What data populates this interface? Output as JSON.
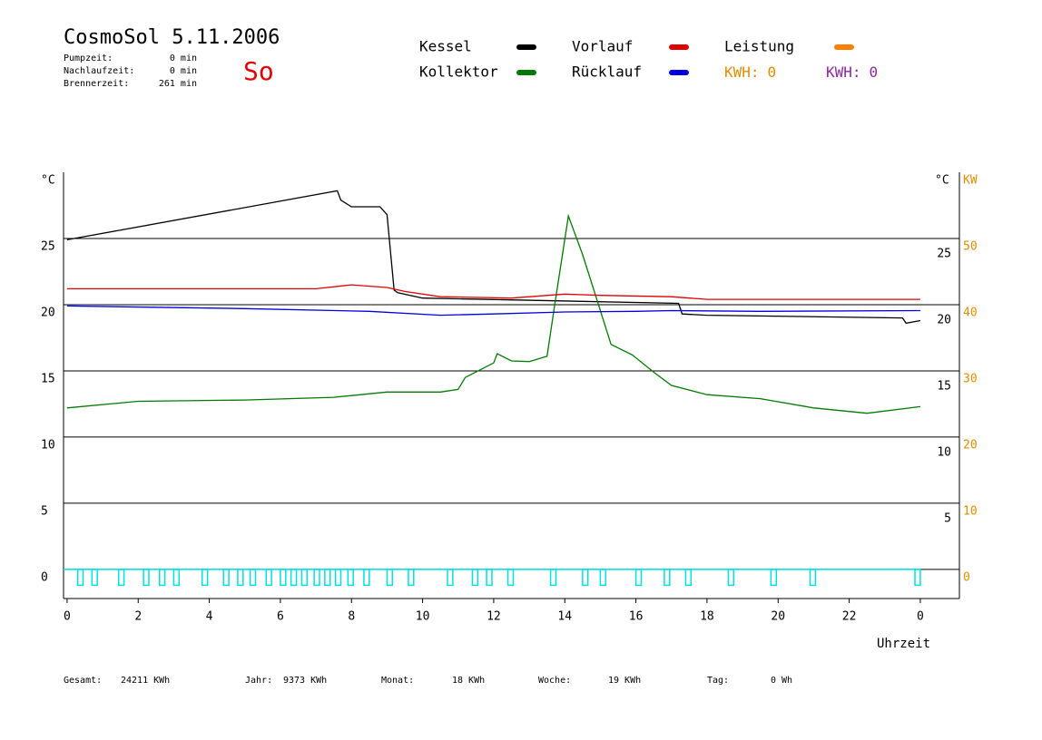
{
  "header": {
    "title": "CosmoSol 5.11.2006",
    "day": "So",
    "stats": [
      {
        "label": "Pumpzeit:",
        "value": "0 min"
      },
      {
        "label": "Nachlaufzeit:",
        "value": "0 min"
      },
      {
        "label": "Brennerzeit:",
        "value": "261 min"
      }
    ]
  },
  "footer": [
    {
      "label": "Gesamt:",
      "value": "24211 KWh"
    },
    {
      "label": "Jahr:",
      "value": "9373 KWh"
    },
    {
      "label": "Monat:",
      "value": "18 KWh"
    },
    {
      "label": "Woche:",
      "value": "19 KWh"
    },
    {
      "label": "Tag:",
      "value": "0 Wh"
    }
  ],
  "chart_data": {
    "type": "line",
    "ylabel": "°C",
    "y2label": "°C",
    "y3label": "KW",
    "xlabel": "Uhrzeit",
    "xlim": [
      -0.1,
      25.1
    ],
    "xticks": [
      0,
      2,
      4,
      6,
      8,
      10,
      12,
      14,
      16,
      18,
      20,
      22,
      {
        "value": 24,
        "label": "0"
      }
    ],
    "ylim": [
      -2.2,
      30
    ],
    "yticks": [
      0,
      5,
      10,
      15,
      20,
      25
    ],
    "y2ticks": [
      5,
      10,
      15,
      20,
      25
    ],
    "y3lim": [
      -4.4,
      60
    ],
    "y3ticks": [
      0,
      10,
      20,
      30,
      40,
      50
    ],
    "y3color": "#e08c00",
    "grid": true,
    "series": [
      {
        "name": "Kessel",
        "color": "#000000",
        "x": [
          0,
          7.6,
          7.7,
          8.0,
          8.8,
          9.0,
          9.2,
          9.3,
          10,
          17.2,
          17.3,
          18,
          23.5,
          23.6,
          24
        ],
        "values": [
          24.9,
          28.6,
          27.9,
          27.4,
          27.4,
          26.8,
          21.1,
          20.9,
          20.5,
          20.1,
          19.3,
          19.2,
          19.0,
          18.6,
          18.8
        ]
      },
      {
        "name": "Kollektor",
        "color": "#007a00",
        "x": [
          0,
          2,
          5,
          7.5,
          9,
          10.5,
          11,
          11.2,
          12,
          12.1,
          12.5,
          13,
          13.5,
          13.7,
          14.1,
          14.5,
          14.9,
          15.3,
          15.9,
          16.5,
          17,
          18,
          19.5,
          21,
          22.5,
          24
        ],
        "values": [
          12.2,
          12.7,
          12.8,
          13.0,
          13.4,
          13.4,
          13.6,
          14.5,
          15.6,
          16.3,
          15.75,
          15.7,
          16.1,
          19.7,
          26.7,
          23.8,
          20.4,
          17.0,
          16.2,
          14.9,
          13.9,
          13.2,
          12.9,
          12.2,
          11.8,
          12.3
        ]
      },
      {
        "name": "Vorlauf",
        "color": "#e00000",
        "x": [
          0,
          7,
          8,
          9,
          9.5,
          10.5,
          12.5,
          14,
          15,
          17,
          18,
          24
        ],
        "values": [
          21.2,
          21.2,
          21.5,
          21.3,
          21.0,
          20.6,
          20.5,
          20.8,
          20.7,
          20.6,
          20.4,
          20.4
        ]
      },
      {
        "name": "Rücklauf",
        "color": "#0000e0",
        "x": [
          0,
          5,
          8.5,
          10.5,
          12,
          14,
          16,
          17,
          19.5,
          24
        ],
        "values": [
          19.9,
          19.7,
          19.5,
          19.2,
          19.3,
          19.45,
          19.5,
          19.55,
          19.5,
          19.55
        ]
      },
      {
        "name": "Leistung",
        "color": "#ff8000"
      }
    ],
    "kwh": [
      {
        "label": "KWH:",
        "value": 0,
        "color": "#e08c00"
      },
      {
        "label": "KWH:",
        "value": 0,
        "color": "#8a2a9a"
      }
    ],
    "pulse_color": "#00e0e0",
    "pulse_low": -1.2,
    "pulses": [
      [
        0.3,
        0.45
      ],
      [
        0.7,
        0.85
      ],
      [
        1.45,
        1.6
      ],
      [
        2.15,
        2.3
      ],
      [
        2.6,
        2.75
      ],
      [
        3.0,
        3.15
      ],
      [
        3.8,
        3.95
      ],
      [
        4.4,
        4.55
      ],
      [
        4.8,
        4.95
      ],
      [
        5.15,
        5.3
      ],
      [
        5.6,
        5.75
      ],
      [
        6.0,
        6.15
      ],
      [
        6.3,
        6.45
      ],
      [
        6.6,
        6.75
      ],
      [
        6.95,
        7.1
      ],
      [
        7.25,
        7.4
      ],
      [
        7.55,
        7.7
      ],
      [
        7.9,
        8.05
      ],
      [
        8.35,
        8.5
      ],
      [
        9.0,
        9.15
      ],
      [
        9.6,
        9.75
      ],
      [
        10.7,
        10.85
      ],
      [
        11.4,
        11.55
      ],
      [
        11.8,
        11.95
      ],
      [
        12.4,
        12.55
      ],
      [
        13.6,
        13.75
      ],
      [
        14.5,
        14.65
      ],
      [
        15.0,
        15.15
      ],
      [
        16.0,
        16.15
      ],
      [
        16.8,
        16.95
      ],
      [
        17.4,
        17.55
      ],
      [
        18.6,
        18.75
      ],
      [
        19.8,
        19.95
      ],
      [
        20.9,
        21.05
      ],
      [
        23.85,
        24.0
      ]
    ]
  }
}
